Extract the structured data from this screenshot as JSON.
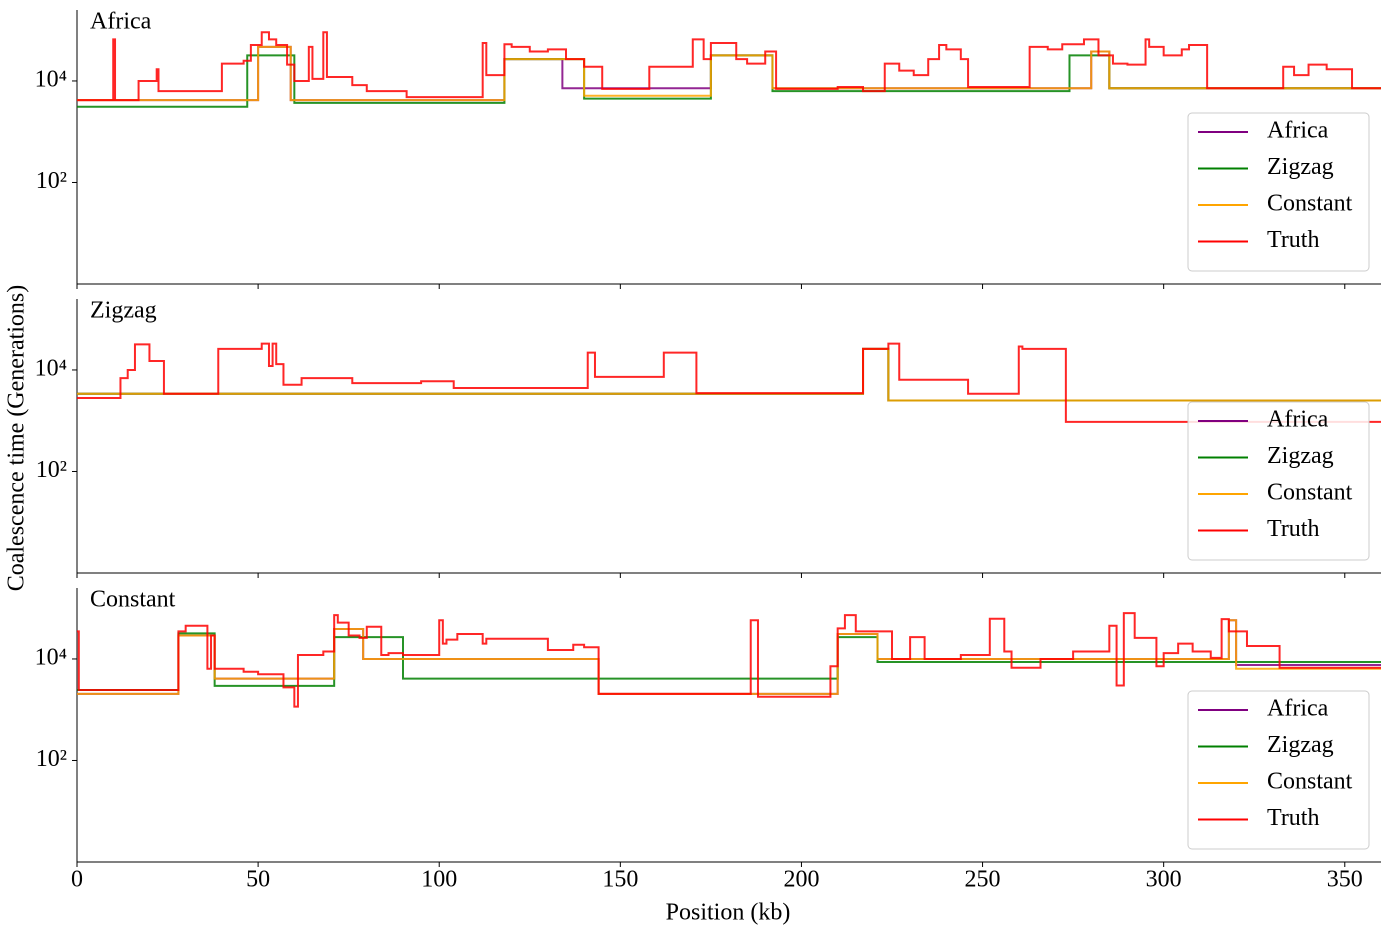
{
  "xlabel": "Position (kb)",
  "ylabel": "Coalescence time (Generations)",
  "chart_data": [
    {
      "type": "line",
      "title": "Africa",
      "log_y": true,
      "legend": "lower right",
      "xlim": [
        0,
        360
      ],
      "xticks": [
        0,
        50,
        100,
        150,
        200,
        250,
        300,
        350
      ],
      "ylim": [
        1,
        250000
      ],
      "yticks": [
        {
          "value": 100,
          "label": "10²"
        },
        {
          "value": 10000,
          "label": "10⁴"
        }
      ],
      "series": [
        {
          "name": "Africa",
          "color": "#800080",
          "x": [
            0,
            50,
            59,
            118,
            134,
            175,
            192,
            280,
            285
          ],
          "values": [
            4200,
            47000,
            4200,
            27000,
            7200,
            32000,
            7200,
            38000,
            7200
          ]
        },
        {
          "name": "Zigzag",
          "color": "#008000",
          "x": [
            0,
            47,
            60,
            118,
            140,
            175,
            192,
            274,
            285
          ],
          "values": [
            3100,
            32000,
            3700,
            27000,
            4500,
            32000,
            6300,
            32000,
            7200
          ]
        },
        {
          "name": "Constant",
          "color": "#ffa500",
          "x": [
            0,
            50,
            59,
            118,
            140,
            175,
            192,
            280,
            285
          ],
          "values": [
            4200,
            47000,
            4200,
            27000,
            5100,
            32000,
            7200,
            38000,
            7200
          ]
        },
        {
          "name": "Truth",
          "color": "#ff0000",
          "x": [
            0,
            10,
            10.5,
            17,
            22,
            22.5,
            40,
            46,
            48,
            51,
            53,
            55,
            58,
            60,
            64,
            65,
            68,
            69,
            76,
            80,
            91,
            112,
            113,
            118,
            120,
            125,
            130,
            135,
            140,
            145,
            158,
            170,
            173,
            175,
            182,
            185,
            190,
            193,
            210,
            217,
            223,
            227,
            231,
            235,
            238,
            240,
            244,
            246,
            263,
            268,
            272,
            278,
            282,
            286,
            290,
            295,
            296,
            300,
            305,
            307,
            312,
            333,
            336,
            340,
            345,
            352
          ],
          "values": [
            4200,
            66000,
            4200,
            10000,
            17000,
            6300,
            22000,
            25000,
            51000,
            91000,
            66000,
            51000,
            21000,
            10000,
            47000,
            11000,
            91000,
            12000,
            8300,
            6300,
            4800,
            56000,
            13000,
            53000,
            47000,
            38000,
            42000,
            27000,
            19000,
            7000,
            19000,
            66000,
            27000,
            56000,
            27000,
            22000,
            38000,
            7000,
            7600,
            6300,
            22000,
            16000,
            13000,
            27000,
            51000,
            42000,
            27000,
            7600,
            47000,
            42000,
            53000,
            66000,
            32000,
            22000,
            21000,
            66000,
            47000,
            32000,
            42000,
            51000,
            7200,
            19000,
            13000,
            21000,
            17000,
            7200
          ]
        }
      ]
    },
    {
      "type": "line",
      "title": "Zigzag",
      "log_y": true,
      "legend": "lower right",
      "xlim": [
        0,
        360
      ],
      "xticks": [
        0,
        50,
        100,
        150,
        200,
        250,
        300,
        350
      ],
      "ylim": [
        1,
        250000
      ],
      "yticks": [
        {
          "value": 100,
          "label": "10²"
        },
        {
          "value": 10000,
          "label": "10⁴"
        }
      ],
      "series": [
        {
          "name": "Africa",
          "color": "#800080",
          "x": [
            0,
            217,
            224
          ],
          "values": [
            3400,
            26000,
            2500
          ]
        },
        {
          "name": "Zigzag",
          "color": "#008000",
          "x": [
            0,
            217,
            224
          ],
          "values": [
            3400,
            26000,
            2500
          ]
        },
        {
          "name": "Constant",
          "color": "#ffa500",
          "x": [
            0,
            217,
            224
          ],
          "values": [
            3400,
            26000,
            2500
          ]
        },
        {
          "name": "Truth",
          "color": "#ff0000",
          "x": [
            0,
            12,
            14,
            16,
            20,
            24,
            39,
            51,
            53,
            54,
            55,
            57,
            62,
            76,
            95,
            104,
            141,
            143,
            162,
            171,
            217,
            224,
            227,
            246,
            260,
            261,
            273
          ],
          "values": [
            2800,
            6900,
            10000,
            32000,
            15000,
            3400,
            26000,
            33000,
            12000,
            33000,
            13000,
            5100,
            6900,
            5500,
            6000,
            4400,
            22000,
            7300,
            22000,
            3500,
            26000,
            33000,
            6400,
            3400,
            29000,
            26000,
            950
          ]
        }
      ]
    },
    {
      "type": "line",
      "title": "Constant",
      "log_y": true,
      "legend": "lower right",
      "xlim": [
        0,
        360
      ],
      "xticks": [
        0,
        50,
        100,
        150,
        200,
        250,
        300,
        350
      ],
      "ylim": [
        1,
        250000
      ],
      "yticks": [
        {
          "value": 100,
          "label": "10²"
        },
        {
          "value": 10000,
          "label": "10⁴"
        }
      ],
      "series": [
        {
          "name": "Africa",
          "color": "#800080",
          "x": [
            0,
            28,
            38,
            71,
            79,
            144,
            210,
            221,
            318,
            320
          ],
          "values": [
            2050,
            29000,
            4100,
            39000,
            10000,
            2050,
            31000,
            10000,
            58000,
            7600
          ]
        },
        {
          "name": "Zigzag",
          "color": "#008000",
          "x": [
            0,
            28,
            38,
            71,
            90,
            210,
            221
          ],
          "values": [
            2450,
            32000,
            2950,
            27000,
            4100,
            27000,
            8700
          ]
        },
        {
          "name": "Constant",
          "color": "#ffa500",
          "x": [
            0,
            28,
            38,
            71,
            79,
            144,
            210,
            221,
            318,
            320
          ],
          "values": [
            2050,
            29000,
            4100,
            39000,
            10000,
            2050,
            31000,
            10000,
            58000,
            6400
          ]
        },
        {
          "name": "Truth",
          "color": "#ff0000",
          "x": [
            0,
            0.5,
            28,
            30,
            36,
            37,
            38,
            46,
            50,
            57,
            60,
            61,
            68,
            71,
            72,
            75,
            78,
            80,
            84,
            86,
            90,
            100,
            101,
            102,
            105,
            112,
            113,
            130,
            137,
            140,
            144,
            186,
            188,
            208,
            210,
            212,
            215,
            225,
            230,
            234,
            244,
            252,
            256,
            258,
            266,
            275,
            285,
            287,
            289,
            292,
            298,
            300,
            304,
            308,
            313,
            316,
            318,
            323,
            332
          ],
          "values": [
            35000,
            2450,
            35000,
            45000,
            6400,
            29000,
            6400,
            5600,
            5000,
            2750,
            1150,
            12000,
            14000,
            73000,
            52000,
            29000,
            26000,
            43000,
            12000,
            13000,
            12000,
            58000,
            20000,
            24000,
            31000,
            20000,
            25000,
            15000,
            19000,
            17000,
            2050,
            58000,
            1800,
            7200,
            40000,
            73000,
            35000,
            10000,
            27000,
            10000,
            12000,
            62000,
            14000,
            6700,
            10000,
            14000,
            45000,
            3000,
            80000,
            26000,
            7200,
            13000,
            20000,
            14000,
            10500,
            61000,
            35000,
            18000,
            6700
          ]
        }
      ]
    }
  ]
}
